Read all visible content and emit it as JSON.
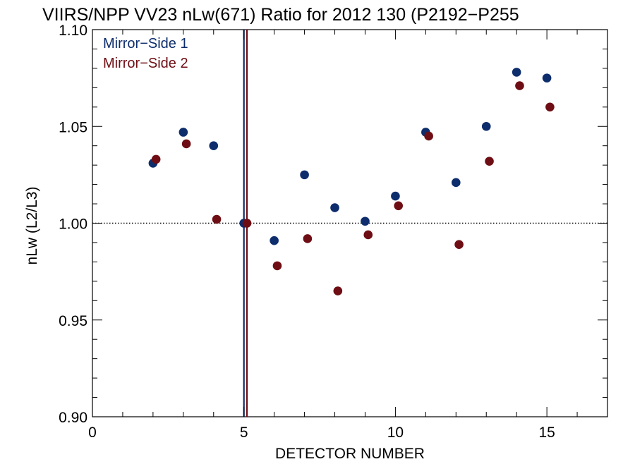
{
  "chart_data": {
    "type": "scatter",
    "title": "VIIRS/NPP VV23 nLw(671) Ratio for 2012 130 (P2192−P255",
    "xlabel": "DETECTOR NUMBER",
    "ylabel": "nLw (L2/L3)",
    "xlim": [
      0,
      17
    ],
    "ylim": [
      0.9,
      1.1
    ],
    "x_ticks": [
      0,
      5,
      10,
      15
    ],
    "x_tick_labels": [
      "0",
      "5",
      "10",
      "15"
    ],
    "y_ticks": [
      0.9,
      0.95,
      1.0,
      1.05,
      1.1
    ],
    "y_tick_labels": [
      "0.90",
      "0.95",
      "1.00",
      "1.05",
      "1.10"
    ],
    "reference_line": {
      "y": 1.0,
      "style": "dotted"
    },
    "vertical_lines": [
      {
        "x": 5.0,
        "series": "Mirror−Side 1"
      },
      {
        "x": 5.1,
        "series": "Mirror−Side 2"
      }
    ],
    "legend_position": "top-left",
    "grid": false,
    "series": [
      {
        "name": "Mirror−Side 1",
        "color": "#0d2d6c",
        "x": [
          2,
          3,
          4,
          5,
          6,
          7,
          8,
          9,
          10,
          11,
          12,
          13,
          14,
          15
        ],
        "y": [
          1.031,
          1.047,
          1.04,
          1.0,
          0.991,
          1.025,
          1.008,
          1.001,
          1.014,
          1.047,
          1.021,
          1.05,
          1.078,
          1.075
        ]
      },
      {
        "name": "Mirror−Side 2",
        "color": "#6e0e14",
        "x": [
          2.1,
          3.1,
          4.1,
          5.1,
          6.1,
          7.1,
          8.1,
          9.1,
          10.1,
          11.1,
          12.1,
          13.1,
          14.1,
          15.1
        ],
        "y": [
          1.033,
          1.041,
          1.002,
          1.0,
          0.978,
          0.992,
          0.965,
          0.994,
          1.009,
          1.045,
          0.989,
          1.032,
          1.071,
          1.06
        ]
      }
    ]
  }
}
